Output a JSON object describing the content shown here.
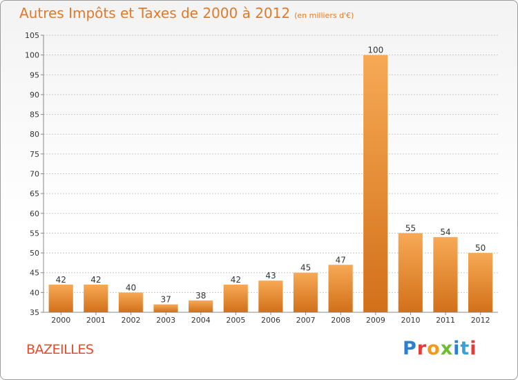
{
  "header": {
    "title": "Autres Impôts et Taxes de 2000 à 2012",
    "unit": "(en milliers d'€)"
  },
  "footer": {
    "commune": "BAZEILLES",
    "logo": "Proxiti"
  },
  "colors": {
    "title": "#e07a2a",
    "bar_light": "#f7a955",
    "bar_dark": "#d8721b",
    "commune": "#e8482e"
  },
  "chart_data": {
    "type": "bar",
    "categories": [
      "2000",
      "2001",
      "2002",
      "2003",
      "2004",
      "2005",
      "2006",
      "2007",
      "2008",
      "2009",
      "2010",
      "2011",
      "2012"
    ],
    "values": [
      42,
      42,
      40,
      37,
      38,
      42,
      43,
      45,
      47,
      100,
      55,
      54,
      50
    ],
    "ylim": [
      35,
      105
    ],
    "yticks": [
      35,
      40,
      45,
      50,
      55,
      60,
      65,
      70,
      75,
      80,
      85,
      90,
      95,
      100,
      105
    ],
    "grid": true,
    "legend": "none"
  }
}
